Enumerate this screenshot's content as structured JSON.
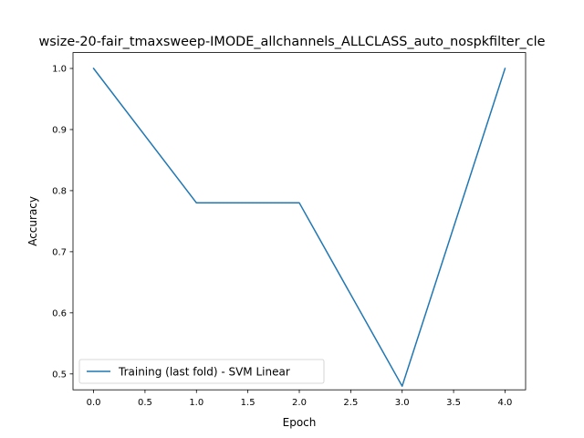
{
  "chart_data": {
    "type": "line",
    "title": "wsize-20-fair_tmaxsweep-IMODE_allchannels_ALLCLASS_auto_nospkfilter_cle",
    "xlabel": "Epoch",
    "ylabel": "Accuracy",
    "xlim": [
      -0.2,
      4.2
    ],
    "ylim": [
      0.474,
      1.026
    ],
    "xticks": [
      0.0,
      0.5,
      1.0,
      1.5,
      2.0,
      2.5,
      3.0,
      3.5,
      4.0
    ],
    "xtick_labels": [
      "0.0",
      "0.5",
      "1.0",
      "1.5",
      "2.0",
      "2.5",
      "3.0",
      "3.5",
      "4.0"
    ],
    "yticks": [
      0.5,
      0.6,
      0.7,
      0.8,
      0.9,
      1.0
    ],
    "ytick_labels": [
      "0.5",
      "0.6",
      "0.7",
      "0.8",
      "0.9",
      "1.0"
    ],
    "grid": false,
    "legend_placement": "lower-left",
    "series": [
      {
        "name": "Training (last fold) - SVM Linear",
        "color": "#1f77b4",
        "x": [
          0,
          1,
          2,
          3,
          4
        ],
        "y": [
          1.0,
          0.78,
          0.78,
          0.48,
          1.0
        ]
      }
    ]
  }
}
